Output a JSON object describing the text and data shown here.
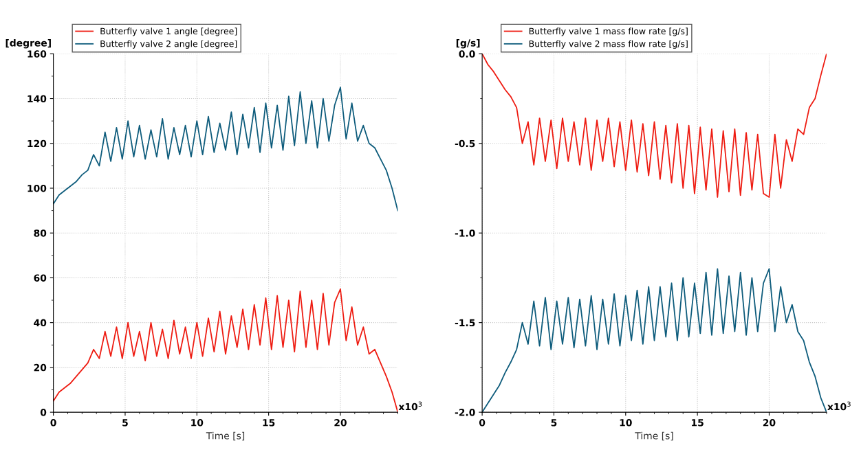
{
  "chart_data": [
    {
      "type": "line",
      "xlabel": "Time [s]",
      "ylabel": "[degree]",
      "annotations": [
        "x10$^{3}$"
      ],
      "x": [
        0,
        0.4,
        0.8,
        1.2,
        1.6,
        2.0,
        2.4,
        2.8,
        3.2,
        3.6,
        4.0,
        4.4,
        4.8,
        5.2,
        5.6,
        6.0,
        6.4,
        6.8,
        7.2,
        7.6,
        8.0,
        8.4,
        8.8,
        9.2,
        9.6,
        10.0,
        10.4,
        10.8,
        11.2,
        11.6,
        12.0,
        12.4,
        12.8,
        13.2,
        13.6,
        14.0,
        14.4,
        14.8,
        15.2,
        15.6,
        16.0,
        16.4,
        16.8,
        17.2,
        17.6,
        18.0,
        18.4,
        18.8,
        19.2,
        19.6,
        20.0,
        20.4,
        20.8,
        21.2,
        21.6,
        22.0,
        22.4,
        22.8,
        23.2,
        23.6,
        24.0
      ],
      "series": [
        {
          "name": "Butterfly valve 1 angle [degree]",
          "color": "#ee1c12",
          "values": [
            5,
            9,
            11,
            13,
            16,
            19,
            22,
            28,
            24,
            36,
            25,
            38,
            24,
            40,
            25,
            36,
            23,
            40,
            25,
            37,
            24,
            41,
            26,
            38,
            24,
            40,
            25,
            42,
            27,
            45,
            26,
            43,
            29,
            46,
            28,
            48,
            30,
            51,
            28,
            52,
            29,
            50,
            27,
            54,
            29,
            50,
            28,
            53,
            30,
            49,
            55,
            32,
            47,
            30,
            38,
            26,
            28,
            22,
            16,
            9,
            0
          ]
        },
        {
          "name": "Butterfly valve 2 angle [degree]",
          "color": "#0e5c7c",
          "values": [
            93,
            97,
            99,
            101,
            103,
            106,
            108,
            115,
            110,
            125,
            112,
            127,
            113,
            130,
            114,
            128,
            113,
            126,
            114,
            131,
            113,
            127,
            115,
            128,
            114,
            130,
            115,
            132,
            116,
            129,
            117,
            134,
            115,
            133,
            118,
            136,
            116,
            138,
            118,
            137,
            117,
            141,
            119,
            143,
            120,
            139,
            118,
            140,
            121,
            137,
            145,
            122,
            138,
            121,
            128,
            120,
            118,
            113,
            108,
            100,
            90
          ]
        }
      ],
      "xlim": [
        0,
        24
      ],
      "xticks": [
        0,
        5,
        10,
        15,
        20
      ],
      "ylim": [
        0,
        160
      ],
      "yticks": [
        0,
        20,
        40,
        60,
        80,
        100,
        120,
        140,
        160
      ],
      "grid": true,
      "legend": "top left",
      "line_style": "solid"
    },
    {
      "type": "line",
      "xlabel": "Time [s]",
      "ylabel": "[g/s]",
      "annotations": [
        "x10$^{3}$"
      ],
      "x": [
        0,
        0.4,
        0.8,
        1.2,
        1.6,
        2.0,
        2.4,
        2.8,
        3.2,
        3.6,
        4.0,
        4.4,
        4.8,
        5.2,
        5.6,
        6.0,
        6.4,
        6.8,
        7.2,
        7.6,
        8.0,
        8.4,
        8.8,
        9.2,
        9.6,
        10.0,
        10.4,
        10.8,
        11.2,
        11.6,
        12.0,
        12.4,
        12.8,
        13.2,
        13.6,
        14.0,
        14.4,
        14.8,
        15.2,
        15.6,
        16.0,
        16.4,
        16.8,
        17.2,
        17.6,
        18.0,
        18.4,
        18.8,
        19.2,
        19.6,
        20.0,
        20.4,
        20.8,
        21.2,
        21.6,
        22.0,
        22.4,
        22.8,
        23.2,
        23.6,
        24.0
      ],
      "series": [
        {
          "name": "Butterfly valve 1 mass flow rate [g/s]",
          "color": "#ee1c12",
          "values": [
            0,
            -0.06,
            -0.1,
            -0.15,
            -0.2,
            -0.24,
            -0.3,
            -0.5,
            -0.38,
            -0.62,
            -0.36,
            -0.6,
            -0.37,
            -0.64,
            -0.36,
            -0.6,
            -0.38,
            -0.62,
            -0.36,
            -0.65,
            -0.37,
            -0.6,
            -0.36,
            -0.63,
            -0.38,
            -0.65,
            -0.37,
            -0.66,
            -0.39,
            -0.68,
            -0.38,
            -0.7,
            -0.4,
            -0.72,
            -0.39,
            -0.75,
            -0.4,
            -0.78,
            -0.41,
            -0.76,
            -0.42,
            -0.8,
            -0.43,
            -0.77,
            -0.42,
            -0.79,
            -0.44,
            -0.76,
            -0.45,
            -0.78,
            -0.8,
            -0.45,
            -0.75,
            -0.48,
            -0.6,
            -0.42,
            -0.45,
            -0.3,
            -0.25,
            -0.12,
            0
          ]
        },
        {
          "name": "Butterfly valve 2 mass flow rate [g/s]",
          "color": "#0e5c7c",
          "values": [
            -2,
            -1.95,
            -1.9,
            -1.85,
            -1.78,
            -1.72,
            -1.65,
            -1.5,
            -1.62,
            -1.38,
            -1.63,
            -1.36,
            -1.65,
            -1.38,
            -1.62,
            -1.36,
            -1.64,
            -1.37,
            -1.63,
            -1.35,
            -1.65,
            -1.37,
            -1.62,
            -1.34,
            -1.63,
            -1.35,
            -1.6,
            -1.32,
            -1.62,
            -1.3,
            -1.6,
            -1.3,
            -1.58,
            -1.28,
            -1.6,
            -1.25,
            -1.58,
            -1.28,
            -1.56,
            -1.22,
            -1.57,
            -1.2,
            -1.56,
            -1.24,
            -1.55,
            -1.22,
            -1.57,
            -1.25,
            -1.55,
            -1.28,
            -1.2,
            -1.55,
            -1.3,
            -1.5,
            -1.4,
            -1.55,
            -1.6,
            -1.72,
            -1.8,
            -1.92,
            -2
          ]
        }
      ],
      "xlim": [
        0,
        24
      ],
      "xticks": [
        0,
        5,
        10,
        15,
        20
      ],
      "ylim": [
        -2.0,
        0.0
      ],
      "yticks": [
        {
          "value": -2.0,
          "label": "-2.0"
        },
        {
          "value": -1.5,
          "label": "-1.5"
        },
        {
          "value": -1.0,
          "label": "-1.0"
        },
        {
          "value": -0.5,
          "label": "-0.5"
        },
        {
          "value": 0.0,
          "label": "0.0"
        }
      ],
      "grid": true,
      "legend": "top left",
      "line_style": "solid"
    }
  ]
}
